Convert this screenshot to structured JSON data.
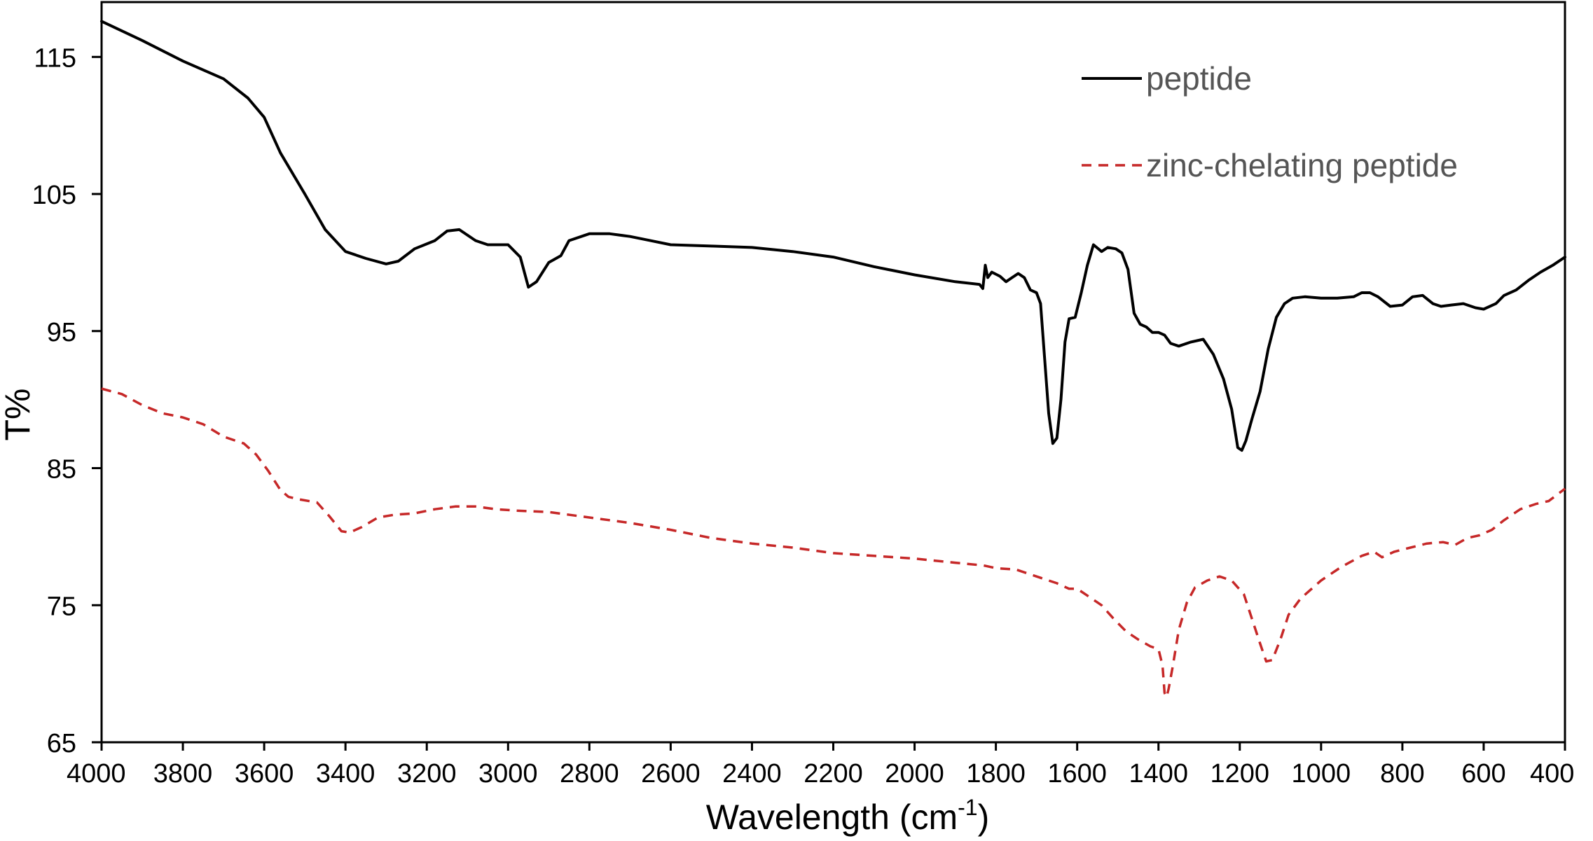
{
  "chart_data": {
    "type": "line",
    "title": "",
    "xlabel": "Wavelength (cm",
    "xlabel_sup": "-1",
    "xlabel_close": ")",
    "ylabel": "T%",
    "xlim": [
      4000,
      400
    ],
    "ylim": [
      65,
      119
    ],
    "x_reversed": true,
    "grid": false,
    "legend_position": "top-right",
    "x_ticks": [
      4000,
      3800,
      3600,
      3400,
      3200,
      3000,
      2800,
      2600,
      2400,
      2200,
      2000,
      1800,
      1600,
      1400,
      1200,
      1000,
      800,
      600,
      400
    ],
    "x_tick_labels": [
      "4000",
      "3800",
      "3600",
      "3400",
      "3200",
      "3000",
      "2800",
      "2600",
      "2400",
      "2200",
      "2000",
      "1800",
      "1600",
      "1400",
      "1200",
      "1000",
      "800",
      "600",
      "400"
    ],
    "y_ticks": [
      65,
      75,
      85,
      95,
      105,
      115
    ],
    "y_tick_labels": [
      "65",
      "75",
      "85",
      "95",
      "105",
      "115"
    ],
    "series": [
      {
        "name": "peptide",
        "color": "#000000",
        "style": "solid",
        "points": [
          [
            4000,
            117.6
          ],
          [
            3900,
            116.2
          ],
          [
            3800,
            114.7
          ],
          [
            3700,
            113.4
          ],
          [
            3640,
            112.0
          ],
          [
            3600,
            110.6
          ],
          [
            3560,
            108.0
          ],
          [
            3500,
            105.0
          ],
          [
            3450,
            102.4
          ],
          [
            3400,
            100.8
          ],
          [
            3350,
            100.3
          ],
          [
            3300,
            99.9
          ],
          [
            3270,
            100.1
          ],
          [
            3230,
            101.0
          ],
          [
            3180,
            101.6
          ],
          [
            3150,
            102.3
          ],
          [
            3120,
            102.4
          ],
          [
            3080,
            101.6
          ],
          [
            3050,
            101.3
          ],
          [
            3000,
            101.3
          ],
          [
            2970,
            100.4
          ],
          [
            2950,
            98.2
          ],
          [
            2930,
            98.6
          ],
          [
            2900,
            100.0
          ],
          [
            2870,
            100.5
          ],
          [
            2850,
            101.6
          ],
          [
            2800,
            102.1
          ],
          [
            2750,
            102.1
          ],
          [
            2700,
            101.9
          ],
          [
            2650,
            101.6
          ],
          [
            2600,
            101.3
          ],
          [
            2500,
            101.2
          ],
          [
            2400,
            101.1
          ],
          [
            2300,
            100.8
          ],
          [
            2200,
            100.4
          ],
          [
            2100,
            99.7
          ],
          [
            2000,
            99.1
          ],
          [
            1900,
            98.6
          ],
          [
            1840,
            98.4
          ],
          [
            1832,
            98.1
          ],
          [
            1826,
            99.8
          ],
          [
            1820,
            98.9
          ],
          [
            1810,
            99.3
          ],
          [
            1790,
            99.0
          ],
          [
            1775,
            98.6
          ],
          [
            1760,
            98.9
          ],
          [
            1745,
            99.2
          ],
          [
            1730,
            98.9
          ],
          [
            1715,
            98.0
          ],
          [
            1700,
            97.8
          ],
          [
            1690,
            97.0
          ],
          [
            1680,
            93.0
          ],
          [
            1670,
            89.0
          ],
          [
            1660,
            86.8
          ],
          [
            1650,
            87.2
          ],
          [
            1640,
            90.0
          ],
          [
            1630,
            94.2
          ],
          [
            1620,
            95.9
          ],
          [
            1605,
            96.0
          ],
          [
            1590,
            97.8
          ],
          [
            1575,
            99.8
          ],
          [
            1560,
            101.3
          ],
          [
            1540,
            100.8
          ],
          [
            1525,
            101.1
          ],
          [
            1505,
            101.0
          ],
          [
            1490,
            100.7
          ],
          [
            1475,
            99.5
          ],
          [
            1460,
            96.3
          ],
          [
            1445,
            95.5
          ],
          [
            1430,
            95.3
          ],
          [
            1415,
            94.9
          ],
          [
            1400,
            94.9
          ],
          [
            1385,
            94.7
          ],
          [
            1370,
            94.1
          ],
          [
            1350,
            93.9
          ],
          [
            1320,
            94.2
          ],
          [
            1290,
            94.4
          ],
          [
            1265,
            93.3
          ],
          [
            1240,
            91.5
          ],
          [
            1220,
            89.3
          ],
          [
            1205,
            86.5
          ],
          [
            1195,
            86.3
          ],
          [
            1185,
            87.0
          ],
          [
            1170,
            88.6
          ],
          [
            1150,
            90.6
          ],
          [
            1130,
            93.7
          ],
          [
            1110,
            96.0
          ],
          [
            1090,
            97.0
          ],
          [
            1070,
            97.4
          ],
          [
            1040,
            97.5
          ],
          [
            1000,
            97.4
          ],
          [
            960,
            97.4
          ],
          [
            920,
            97.5
          ],
          [
            900,
            97.8
          ],
          [
            880,
            97.8
          ],
          [
            860,
            97.5
          ],
          [
            830,
            96.8
          ],
          [
            800,
            96.9
          ],
          [
            775,
            97.5
          ],
          [
            750,
            97.6
          ],
          [
            725,
            97.0
          ],
          [
            705,
            96.8
          ],
          [
            680,
            96.9
          ],
          [
            650,
            97.0
          ],
          [
            620,
            96.7
          ],
          [
            600,
            96.6
          ],
          [
            570,
            97.0
          ],
          [
            550,
            97.6
          ],
          [
            520,
            98.0
          ],
          [
            490,
            98.7
          ],
          [
            460,
            99.3
          ],
          [
            430,
            99.8
          ],
          [
            400,
            100.4
          ]
        ]
      },
      {
        "name": "zinc-chelating peptide",
        "color": "#c62828",
        "style": "dashed",
        "points": [
          [
            4000,
            90.8
          ],
          [
            3950,
            90.4
          ],
          [
            3900,
            89.6
          ],
          [
            3850,
            89.0
          ],
          [
            3800,
            88.7
          ],
          [
            3750,
            88.2
          ],
          [
            3700,
            87.3
          ],
          [
            3650,
            86.8
          ],
          [
            3620,
            86.0
          ],
          [
            3590,
            84.8
          ],
          [
            3560,
            83.4
          ],
          [
            3540,
            82.9
          ],
          [
            3510,
            82.7
          ],
          [
            3470,
            82.5
          ],
          [
            3440,
            81.5
          ],
          [
            3410,
            80.4
          ],
          [
            3390,
            80.3
          ],
          [
            3360,
            80.7
          ],
          [
            3320,
            81.4
          ],
          [
            3280,
            81.6
          ],
          [
            3230,
            81.7
          ],
          [
            3180,
            82.0
          ],
          [
            3130,
            82.2
          ],
          [
            3080,
            82.2
          ],
          [
            3030,
            82.0
          ],
          [
            2980,
            81.9
          ],
          [
            2900,
            81.8
          ],
          [
            2800,
            81.4
          ],
          [
            2700,
            81.0
          ],
          [
            2600,
            80.5
          ],
          [
            2500,
            79.9
          ],
          [
            2400,
            79.5
          ],
          [
            2300,
            79.2
          ],
          [
            2200,
            78.8
          ],
          [
            2100,
            78.6
          ],
          [
            2000,
            78.4
          ],
          [
            1900,
            78.1
          ],
          [
            1830,
            77.9
          ],
          [
            1800,
            77.7
          ],
          [
            1750,
            77.6
          ],
          [
            1700,
            77.1
          ],
          [
            1650,
            76.6
          ],
          [
            1620,
            76.2
          ],
          [
            1600,
            76.2
          ],
          [
            1570,
            75.6
          ],
          [
            1540,
            75.0
          ],
          [
            1510,
            74.0
          ],
          [
            1480,
            73.1
          ],
          [
            1450,
            72.5
          ],
          [
            1420,
            72.0
          ],
          [
            1400,
            71.8
          ],
          [
            1390,
            70.6
          ],
          [
            1385,
            68.6
          ],
          [
            1380,
            68.3
          ],
          [
            1375,
            68.9
          ],
          [
            1365,
            70.5
          ],
          [
            1350,
            73.2
          ],
          [
            1330,
            75.2
          ],
          [
            1310,
            76.3
          ],
          [
            1280,
            76.8
          ],
          [
            1250,
            77.1
          ],
          [
            1220,
            76.8
          ],
          [
            1190,
            75.8
          ],
          [
            1170,
            74.0
          ],
          [
            1150,
            72.2
          ],
          [
            1135,
            70.9
          ],
          [
            1120,
            71.0
          ],
          [
            1100,
            72.5
          ],
          [
            1080,
            74.3
          ],
          [
            1050,
            75.5
          ],
          [
            1000,
            76.8
          ],
          [
            950,
            77.8
          ],
          [
            900,
            78.6
          ],
          [
            870,
            78.9
          ],
          [
            850,
            78.5
          ],
          [
            820,
            78.9
          ],
          [
            780,
            79.2
          ],
          [
            740,
            79.5
          ],
          [
            700,
            79.6
          ],
          [
            670,
            79.4
          ],
          [
            640,
            79.9
          ],
          [
            610,
            80.1
          ],
          [
            580,
            80.5
          ],
          [
            550,
            81.2
          ],
          [
            510,
            82.0
          ],
          [
            470,
            82.4
          ],
          [
            440,
            82.6
          ],
          [
            400,
            83.5
          ]
        ]
      }
    ]
  }
}
